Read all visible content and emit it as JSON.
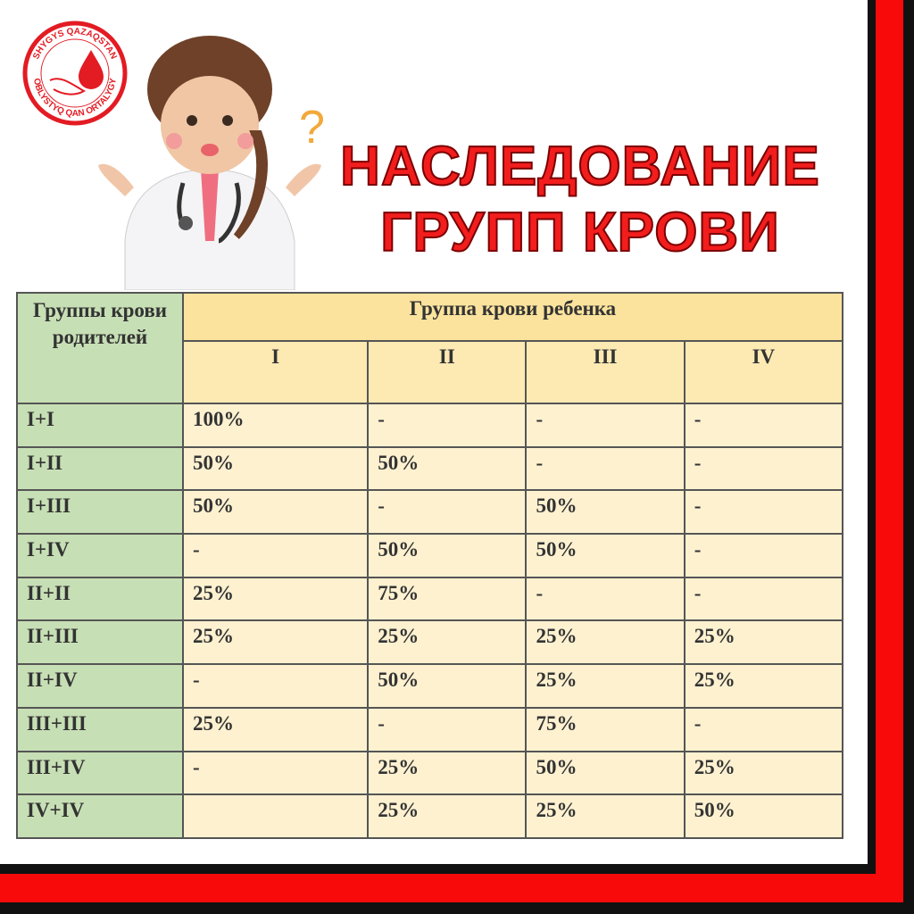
{
  "logo": {
    "text_top": "SHYGYS QAZAQSTAN",
    "text_bottom": "OBLYSTYQ QAN ORTALYGY",
    "colors": {
      "brand": "#e31b23"
    }
  },
  "title": {
    "line1": "НАСЛЕДОВАНИЕ",
    "line2": "ГРУПП КРОВИ"
  },
  "table": {
    "corner_header": "Группы крови родителей",
    "child_header": "Группа крови ребенка",
    "columns": [
      "I",
      "II",
      "III",
      "IV"
    ],
    "rows": [
      {
        "parents": "I+I",
        "values": [
          "100%",
          "-",
          "-",
          "-"
        ]
      },
      {
        "parents": "I+II",
        "values": [
          "50%",
          "50%",
          "-",
          "-"
        ]
      },
      {
        "parents": "I+III",
        "values": [
          "50%",
          "-",
          "50%",
          "-"
        ]
      },
      {
        "parents": "I+IV",
        "values": [
          "-",
          "50%",
          "50%",
          "-"
        ]
      },
      {
        "parents": "II+II",
        "values": [
          "25%",
          "75%",
          "-",
          "-"
        ]
      },
      {
        "parents": "II+III",
        "values": [
          "25%",
          "25%",
          "25%",
          "25%"
        ]
      },
      {
        "parents": "II+IV",
        "values": [
          "-",
          "50%",
          "25%",
          "25%"
        ]
      },
      {
        "parents": "III+III",
        "values": [
          "25%",
          "-",
          "75%",
          "-"
        ]
      },
      {
        "parents": "III+IV",
        "values": [
          "-",
          "25%",
          "50%",
          "25%"
        ]
      },
      {
        "parents": "IV+IV",
        "values": [
          "",
          "25%",
          "25%",
          "50%"
        ]
      }
    ]
  },
  "colors": {
    "title": "#f21d1d",
    "frame_red": "#f80a0a",
    "frame_black": "#111111",
    "header": "#fbe39d",
    "cell": "#fdf1d0",
    "parent_col": "#c7dfb5"
  }
}
